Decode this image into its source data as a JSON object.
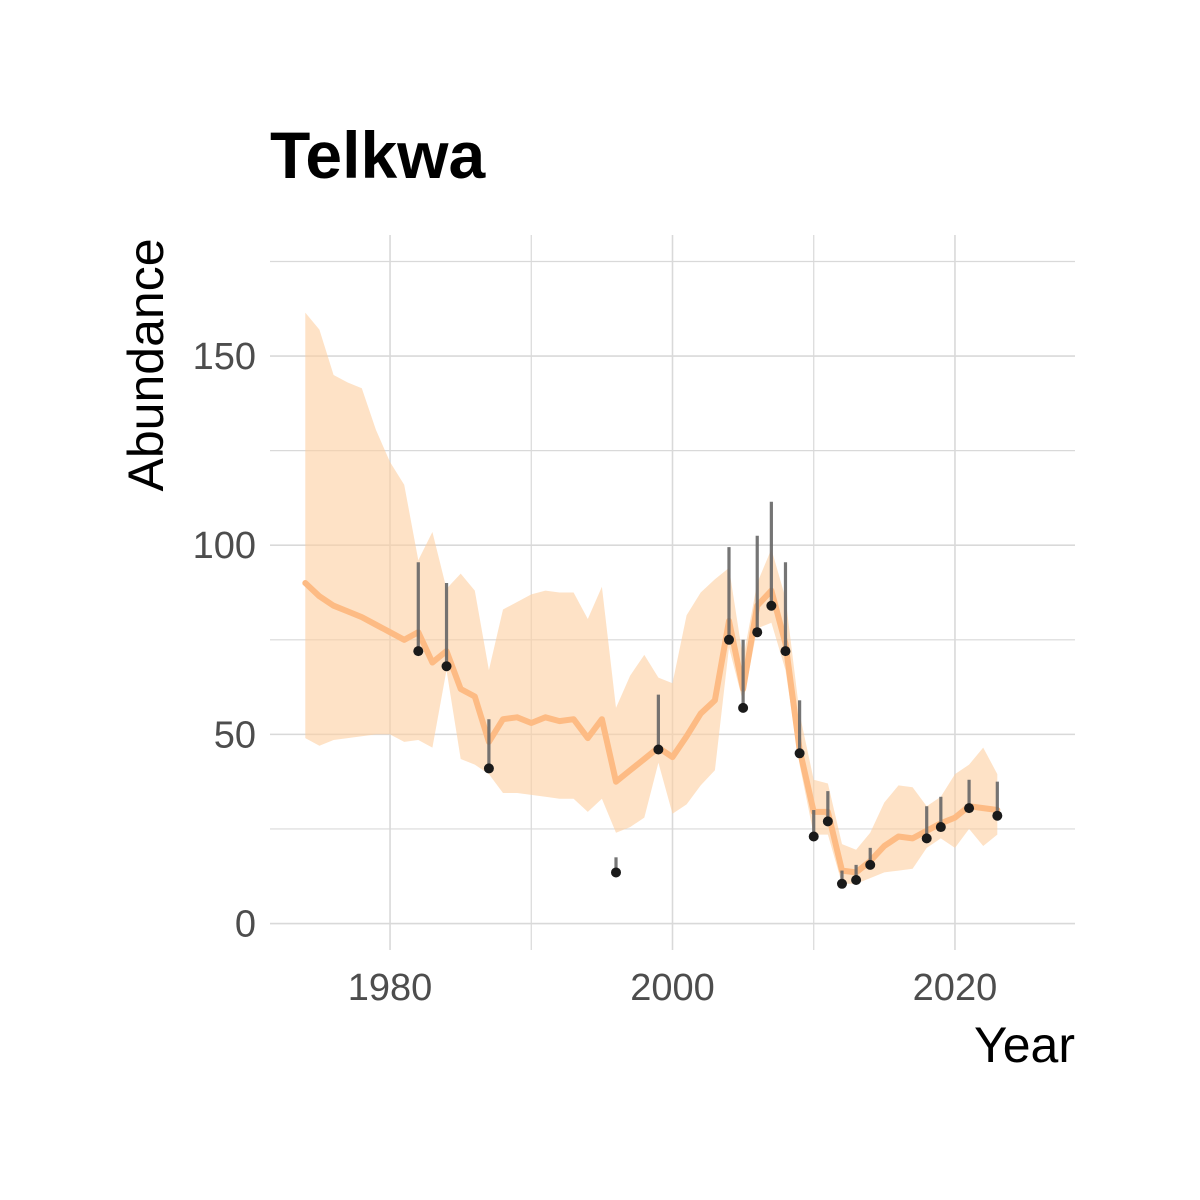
{
  "chart_data": {
    "type": "line",
    "title": "Telkwa",
    "xlabel": "Year",
    "ylabel": "Abundance",
    "xlim": [
      1971.5,
      2028.5
    ],
    "ylim": [
      -7,
      182
    ],
    "x_ticks": [
      1980,
      2000,
      2020
    ],
    "x_tick_labels": [
      "1980",
      "2000",
      "2020"
    ],
    "x_minor_ticks": [
      1990,
      2010
    ],
    "y_ticks": [
      0,
      50,
      100,
      150
    ],
    "y_tick_labels": [
      "0",
      "50",
      "100",
      "150"
    ],
    "y_minor_ticks": [
      25,
      75,
      125,
      175
    ],
    "grid": true,
    "legend": "none",
    "colors": {
      "ribbon": "#fdcea0",
      "line": "#fdbb84",
      "point": "#1a1a1a",
      "error_bar": "#666666",
      "grid": "#d9d9d9"
    },
    "series": [
      {
        "type": "line_with_ribbon",
        "x": [
          1974,
          1975,
          1976,
          1977,
          1978,
          1979,
          1980,
          1981,
          1982,
          1983,
          1984,
          1985,
          1986,
          1987,
          1988,
          1989,
          1990,
          1991,
          1992,
          1993,
          1994,
          1995,
          1996,
          1997,
          1998,
          1999,
          2000,
          2001,
          2002,
          2003,
          2004,
          2005,
          2006,
          2007,
          2008,
          2009,
          2010,
          2011,
          2012,
          2013,
          2014,
          2015,
          2016,
          2017,
          2018,
          2019,
          2020,
          2021,
          2022,
          2023
        ],
        "y": [
          90,
          86.5,
          84,
          82.5,
          81,
          79,
          77,
          75,
          77,
          69,
          72,
          62,
          60,
          48,
          54,
          54.5,
          53,
          54.5,
          53.5,
          54,
          49,
          54,
          37.5,
          40.5,
          43.5,
          46.5,
          44,
          49.5,
          55.5,
          59,
          80,
          62,
          84,
          88,
          74,
          46,
          29.5,
          29.5,
          14,
          13.5,
          16.5,
          20.5,
          23,
          22.5,
          24.5,
          26.5,
          28,
          31,
          30.5,
          30
        ],
        "lower": [
          49,
          47,
          48.5,
          49,
          49.5,
          50,
          50,
          48,
          48.5,
          46.5,
          67,
          43.5,
          42,
          39.5,
          34.5,
          34.5,
          34,
          33.5,
          33,
          33,
          29.5,
          33,
          24,
          25.5,
          28,
          42.5,
          29,
          31.5,
          36.5,
          40.5,
          73,
          58.5,
          78,
          79.5,
          67,
          42,
          23.5,
          23.5,
          10.5,
          10.5,
          12,
          13.5,
          14,
          14.5,
          20,
          22.5,
          20,
          25,
          20.5,
          23.5
        ],
        "upper": [
          161.5,
          157,
          145,
          143,
          141.5,
          130.5,
          122,
          116,
          96,
          103.5,
          88.5,
          92.5,
          88,
          67,
          83,
          85,
          87,
          88,
          87.5,
          87.5,
          80.5,
          89,
          57,
          65.5,
          71,
          65,
          63.5,
          81.5,
          87.5,
          91,
          94,
          70,
          90,
          99,
          86,
          55.5,
          38,
          37,
          21,
          19.5,
          24,
          32,
          36.5,
          36,
          31,
          33.5,
          39.5,
          42,
          46.5,
          39.5
        ]
      },
      {
        "type": "points_with_errorbars",
        "x": [
          1982,
          1984,
          1987,
          1996,
          1999,
          2004,
          2005,
          2006,
          2007,
          2008,
          2009,
          2010,
          2011,
          2012,
          2013,
          2014,
          2018,
          2019,
          2021,
          2023
        ],
        "y": [
          72,
          68,
          41,
          13.5,
          46,
          75,
          57,
          77,
          84,
          72,
          45,
          23,
          27,
          10.5,
          11.5,
          15.5,
          22.5,
          25.5,
          30.5,
          28.5
        ],
        "lower": [
          72,
          68,
          41,
          13.5,
          46,
          75,
          57,
          77,
          84,
          72,
          45,
          23,
          27,
          10.5,
          11.5,
          15.5,
          22.5,
          25.5,
          30.5,
          28.5
        ],
        "upper": [
          95.5,
          90,
          54,
          17.5,
          60.5,
          99.5,
          75,
          102.5,
          111.5,
          95.5,
          59,
          30,
          35,
          14,
          15.5,
          20,
          31,
          33.5,
          38,
          37.5
        ]
      }
    ]
  }
}
